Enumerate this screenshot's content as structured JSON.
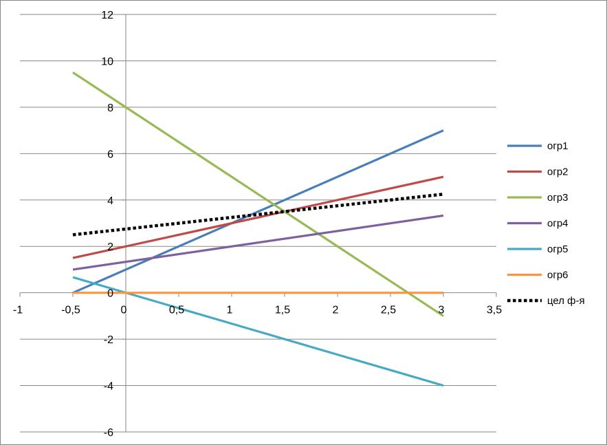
{
  "chart_data": {
    "type": "line",
    "title": "",
    "xlabel": "",
    "ylabel": "",
    "xlim": [
      -1,
      3.5
    ],
    "ylim": [
      -6,
      12
    ],
    "x_ticks": [
      -1,
      -0.5,
      0,
      0.5,
      1,
      1.5,
      2,
      2.5,
      3,
      3.5
    ],
    "x_tick_labels": [
      "-1",
      "-0,5",
      "0",
      "0,5",
      "1",
      "1,5",
      "2",
      "2,5",
      "3",
      "3,5"
    ],
    "y_ticks": [
      -6,
      -4,
      -2,
      0,
      2,
      4,
      6,
      8,
      10,
      12
    ],
    "y_tick_labels": [
      "-6",
      "-4",
      "-2",
      "0",
      "2",
      "4",
      "6",
      "8",
      "10",
      "12"
    ],
    "grid": "horizontal",
    "legend_position": "right",
    "series": [
      {
        "name": "огр1",
        "color": "#4A7EBB",
        "dashed": false,
        "x": [
          -0.5,
          3
        ],
        "y": [
          0,
          7
        ]
      },
      {
        "name": "огр2",
        "color": "#BE4B48",
        "dashed": false,
        "x": [
          -0.5,
          3
        ],
        "y": [
          1.5,
          5
        ]
      },
      {
        "name": "огр3",
        "color": "#98B954",
        "dashed": false,
        "x": [
          -0.5,
          3
        ],
        "y": [
          9.5,
          -1
        ]
      },
      {
        "name": "огр4",
        "color": "#7D60A0",
        "dashed": false,
        "x": [
          -0.5,
          3
        ],
        "y": [
          1,
          3.33
        ]
      },
      {
        "name": "огр5",
        "color": "#46AAC5",
        "dashed": false,
        "x": [
          -0.5,
          3
        ],
        "y": [
          0.67,
          -4
        ]
      },
      {
        "name": "огр6",
        "color": "#F79646",
        "dashed": false,
        "x": [
          -0.5,
          3
        ],
        "y": [
          0,
          0
        ]
      },
      {
        "name": "цел ф-я",
        "color": "#000000",
        "dashed": true,
        "x": [
          -0.5,
          3
        ],
        "y": [
          2.5,
          4.25
        ]
      }
    ]
  }
}
